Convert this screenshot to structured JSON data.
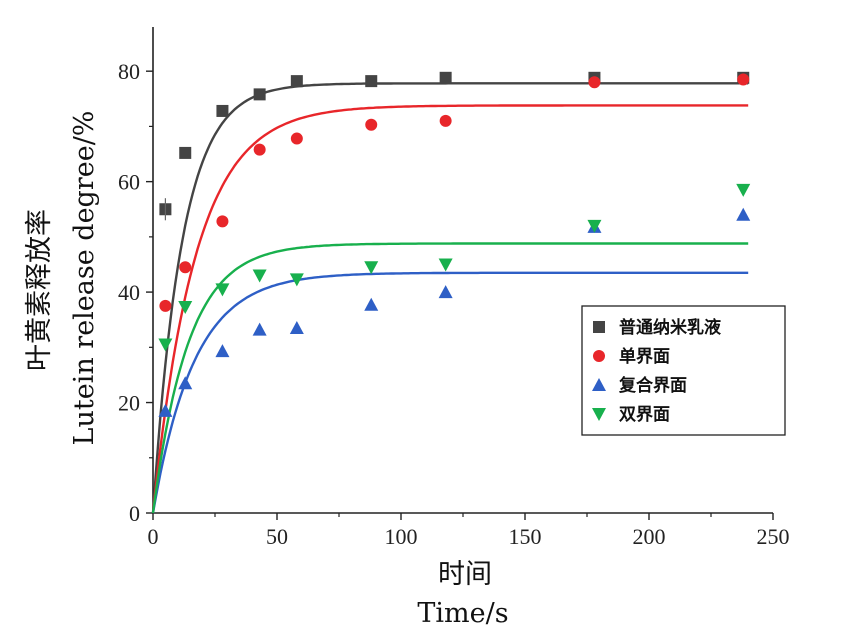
{
  "chart_data": {
    "type": "scatter",
    "xlabel_cn": "时间",
    "xlabel_en": "Time/s",
    "ylabel_cn": "叶黄素释放率",
    "ylabel_en": "Lutein release degree/%",
    "xlim": [
      0,
      250
    ],
    "ylim": [
      0,
      88
    ],
    "xticks": [
      0,
      50,
      100,
      150,
      200,
      250
    ],
    "yticks": [
      0,
      20,
      40,
      60,
      80
    ],
    "grid": false,
    "legend_position": "right",
    "x": [
      5,
      13,
      28,
      43,
      58,
      88,
      118,
      178,
      238
    ],
    "series": [
      {
        "name": "普通纳米乳液",
        "marker": "square",
        "color": "#444444",
        "values": [
          55,
          65.2,
          72.8,
          75.8,
          78.2,
          78.2,
          78.8,
          78.8,
          78.8
        ],
        "fit": {
          "plateau": 77.8,
          "k": 0.085
        }
      },
      {
        "name": "单界面",
        "marker": "circle",
        "color": "#e8262a",
        "values": [
          37.5,
          44.5,
          52.8,
          65.8,
          67.8,
          70.3,
          71.0,
          78.0,
          78.5
        ],
        "fit": {
          "plateau": 73.8,
          "k": 0.058
        }
      },
      {
        "name": "复合界面",
        "marker": "triangle-up",
        "color": "#2e5fc6",
        "values": [
          18.5,
          23.5,
          29.3,
          33.2,
          33.5,
          37.7,
          40.0,
          51.8,
          54.0
        ],
        "fit": {
          "plateau": 43.5,
          "k": 0.06
        }
      },
      {
        "name": "双界面",
        "marker": "triangle-down",
        "color": "#18b04d",
        "values": [
          30.5,
          37.3,
          40.5,
          43.0,
          42.3,
          44.5,
          45.0,
          52.0,
          58.5
        ],
        "fit": {
          "plateau": 48.8,
          "k": 0.07
        }
      }
    ]
  }
}
